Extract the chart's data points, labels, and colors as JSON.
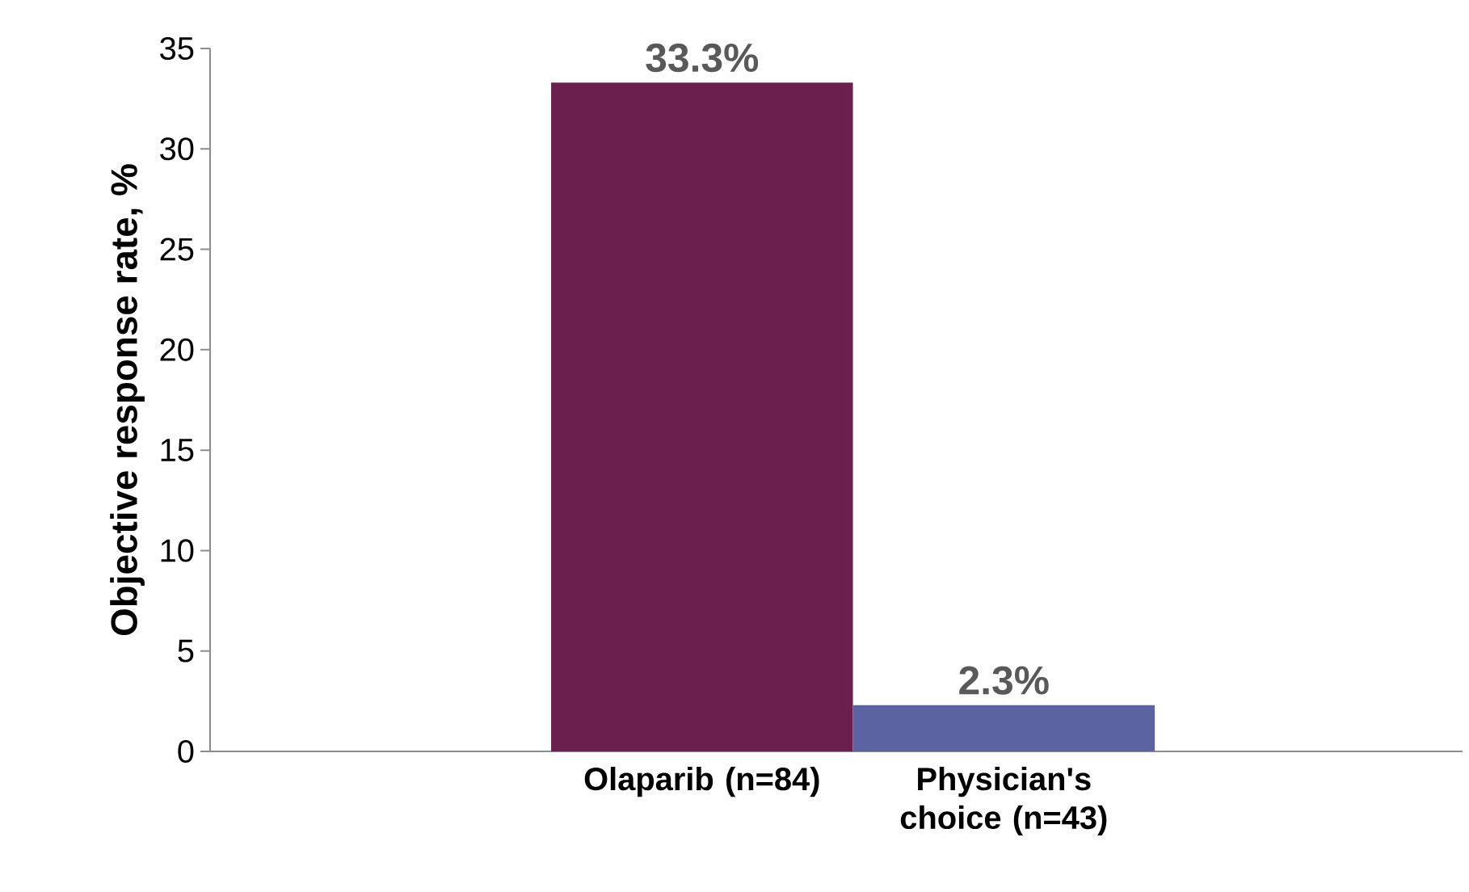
{
  "chart_data": {
    "type": "bar",
    "ylabel": "Objective response rate, %",
    "categories": [
      "Olaparib (n=84)",
      "Physician's choice (n=43)"
    ],
    "values": [
      33.3,
      2.3
    ],
    "colors": [
      "#6b1f4e",
      "#5b63a3"
    ],
    "value_labels": [
      "33.3%",
      "2.3%"
    ],
    "ylim": [
      0,
      35
    ],
    "yticks": [
      0,
      5,
      10,
      15,
      20,
      25,
      30,
      35
    ]
  }
}
